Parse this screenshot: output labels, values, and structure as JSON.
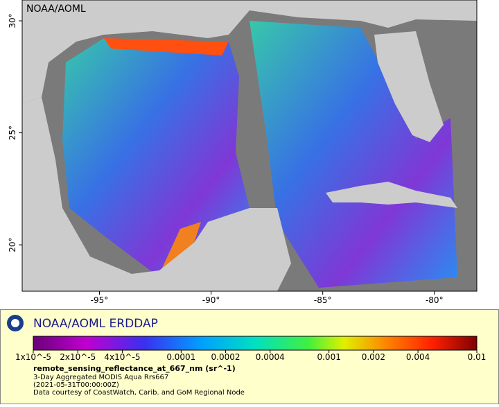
{
  "map": {
    "label": "NOAA/AOML",
    "xlim": [
      -98.46,
      -78.1
    ],
    "ylim": [
      17.93,
      30.93
    ],
    "xticks": [
      {
        "value": -95,
        "label": "-95°"
      },
      {
        "value": -90,
        "label": "-90°"
      },
      {
        "value": -85,
        "label": "-85°"
      },
      {
        "value": -80,
        "label": "-80°"
      }
    ],
    "yticks": [
      {
        "value": 30,
        "label": "30°"
      },
      {
        "value": 25,
        "label": "25°"
      },
      {
        "value": 20,
        "label": "20°"
      }
    ]
  },
  "legend": {
    "title": "NOAA/AOML ERDDAP",
    "colorbar": {
      "lim": [
        1e-05,
        0.01
      ],
      "log": true,
      "ticks": [
        {
          "value": 1e-05,
          "label": "1x10^-5"
        },
        {
          "value": 2e-05,
          "label": "2x10^-5"
        },
        {
          "value": 4e-05,
          "label": "4x10^-5"
        },
        0.0001,
        0.0002,
        0.0004,
        0.001,
        0.002,
        0.004,
        0.01
      ]
    },
    "variable": "remote_sensing_reflectance_at_667_nm (sr^-1)",
    "lines": [
      "3-Day Aggregated MODIS Aqua Rrs667",
      "(2021-05-31T00:00:00Z)",
      "Data courtesy of CoastWatch, Carib. and GoM Regional Node"
    ]
  }
}
